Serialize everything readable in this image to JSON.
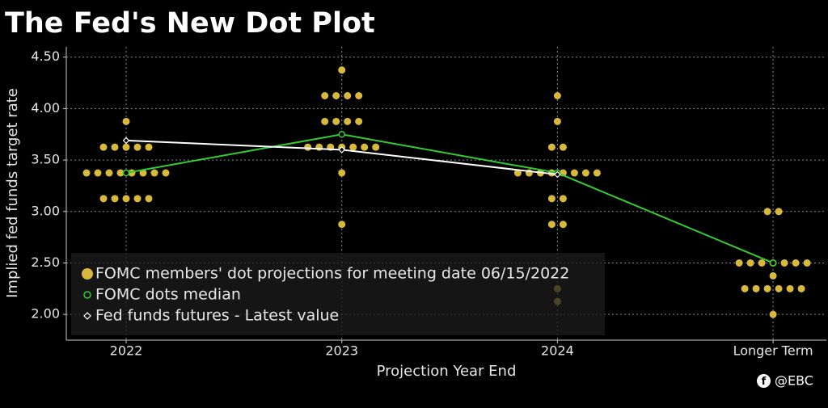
{
  "chart_data": {
    "type": "dot",
    "title": "The Fed's New Dot Plot",
    "y_label": "Implied fed funds target rate",
    "x_label": "Projection Year End",
    "watermark": "@EBC",
    "categories": [
      "2022",
      "2023",
      "2024",
      "Longer Term"
    ],
    "ylim": [
      1.75,
      4.6
    ],
    "yticks": [
      {
        "value": 2,
        "label": "2.00"
      },
      {
        "value": 2.5,
        "label": "2.50"
      },
      {
        "value": 3,
        "label": "3.00"
      },
      {
        "value": 3.5,
        "label": "3.50"
      },
      {
        "value": 4,
        "label": "4.00"
      },
      {
        "value": 4.5,
        "label": "4.50"
      }
    ],
    "grid": true,
    "series": [
      {
        "name": "FOMC members' dot projections for meeting date 06/15/2022",
        "color": "#d9b83e",
        "values": [
          [
            3.875,
            3.625,
            3.625,
            3.625,
            3.625,
            3.625,
            3.375,
            3.375,
            3.375,
            3.375,
            3.375,
            3.375,
            3.375,
            3.375,
            3.125,
            3.125,
            3.125,
            3.125,
            3.125
          ],
          [
            4.375,
            4.125,
            4.125,
            4.125,
            4.125,
            3.875,
            3.875,
            3.875,
            3.875,
            3.625,
            3.625,
            3.625,
            3.625,
            3.625,
            3.625,
            3.625,
            3.375,
            2.875
          ],
          [
            4.125,
            3.875,
            3.625,
            3.625,
            3.375,
            3.375,
            3.375,
            3.375,
            3.375,
            3.375,
            3.375,
            3.375,
            3.125,
            3.125,
            2.875,
            2.875,
            2.25,
            2.125
          ],
          [
            3,
            3,
            2.5,
            2.5,
            2.5,
            2.5,
            2.5,
            2.5,
            2.5,
            2.375,
            2.25,
            2.25,
            2.25,
            2.25,
            2.25,
            2.25,
            2
          ]
        ]
      },
      {
        "name": "FOMC dots median",
        "color": "#33cc33",
        "values": [
          3.375,
          3.75,
          3.375,
          2.5
        ]
      },
      {
        "name": "Fed funds futures - Latest value",
        "color": "#ffffff",
        "values": [
          3.69,
          3.6,
          3.36,
          null
        ]
      }
    ]
  }
}
